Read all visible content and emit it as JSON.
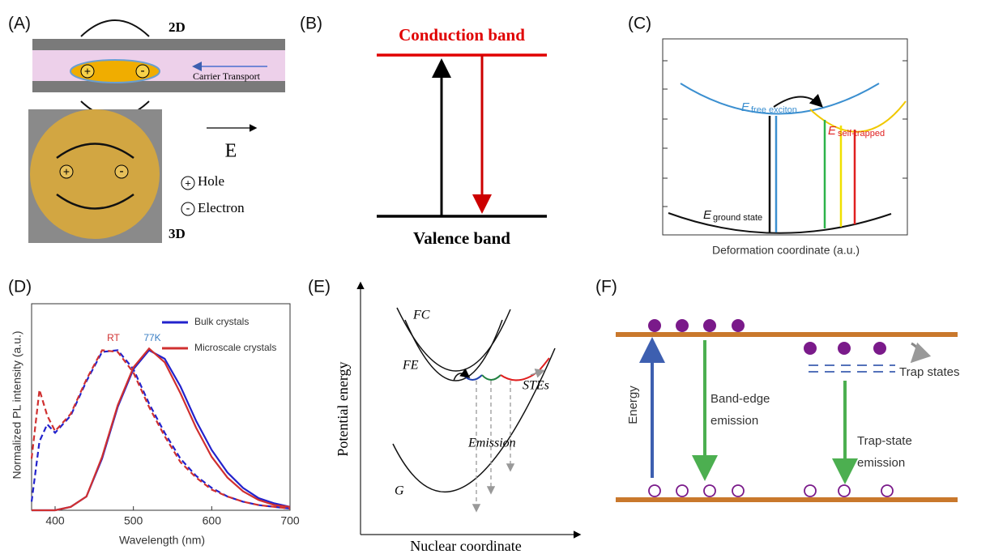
{
  "panels": {
    "a": {
      "label": "(A)",
      "top": "2D",
      "bottom": "3D",
      "transport": "Carrier Transport",
      "field": "E",
      "hole": "Hole",
      "electron": "Electron",
      "plus": "+",
      "minus": "-"
    },
    "b": {
      "label": "(B)",
      "conduction": "Conduction band",
      "valence": "Valence band"
    },
    "c": {
      "label": "(C)",
      "e": "E",
      "free": "free exciton",
      "self": "self-trapped",
      "ground": "ground state",
      "xlabel": "Deformation coordinate (a.u.)"
    },
    "e": {
      "label": "(E)",
      "ylabel": "Potential energy",
      "xlabel": "Nuclear coordinate",
      "fc": "FC",
      "fe": "FE",
      "stes": "STEs",
      "emission": "Emission",
      "g": "G"
    },
    "f": {
      "label": "(F)",
      "energy": "Energy",
      "band_edge": [
        "Band-edge",
        "emission"
      ],
      "trap_states": "Trap states",
      "trap_emission": [
        "Trap-state",
        "emission"
      ]
    }
  },
  "chart_data": {
    "type": "line",
    "label": "(D)",
    "xlabel": "Wavelength (nm)",
    "ylabel": "Normalized PL intensity (a.u.)",
    "x": [
      370,
      380,
      390,
      400,
      420,
      440,
      460,
      480,
      500,
      520,
      540,
      560,
      580,
      600,
      620,
      640,
      660,
      680,
      700
    ],
    "series": [
      {
        "name": "Bulk crystals",
        "color": "#2222cc",
        "dashed": true,
        "values": [
          0.05,
          0.4,
          0.5,
          0.45,
          0.55,
          0.75,
          0.92,
          0.93,
          0.82,
          0.62,
          0.45,
          0.3,
          0.2,
          0.13,
          0.08,
          0.05,
          0.03,
          0.02,
          0.01
        ]
      },
      {
        "name": "Microscale crystals",
        "color": "#d03030",
        "dashed": true,
        "values": [
          0.3,
          0.7,
          0.55,
          0.46,
          0.56,
          0.76,
          0.93,
          0.92,
          0.8,
          0.6,
          0.43,
          0.28,
          0.19,
          0.12,
          0.08,
          0.05,
          0.03,
          0.02,
          0.01
        ]
      },
      {
        "color": "#2222cc",
        "values": [
          0,
          0,
          0,
          0,
          0.02,
          0.08,
          0.3,
          0.6,
          0.82,
          0.93,
          0.88,
          0.72,
          0.52,
          0.35,
          0.22,
          0.13,
          0.07,
          0.04,
          0.02
        ]
      },
      {
        "color": "#d03030",
        "values": [
          0,
          0,
          0,
          0,
          0.02,
          0.08,
          0.31,
          0.61,
          0.83,
          0.94,
          0.86,
          0.68,
          0.48,
          0.31,
          0.19,
          0.11,
          0.06,
          0.03,
          0.02
        ]
      }
    ],
    "annotations": [
      {
        "text": "RT",
        "color": "#d03030"
      },
      {
        "text": "77K",
        "color": "#3a7fc4"
      }
    ],
    "xlim": [
      370,
      700
    ],
    "xticks": [
      400,
      500,
      600,
      700
    ],
    "ylim": [
      0,
      1.2
    ],
    "legend": "upper right"
  }
}
